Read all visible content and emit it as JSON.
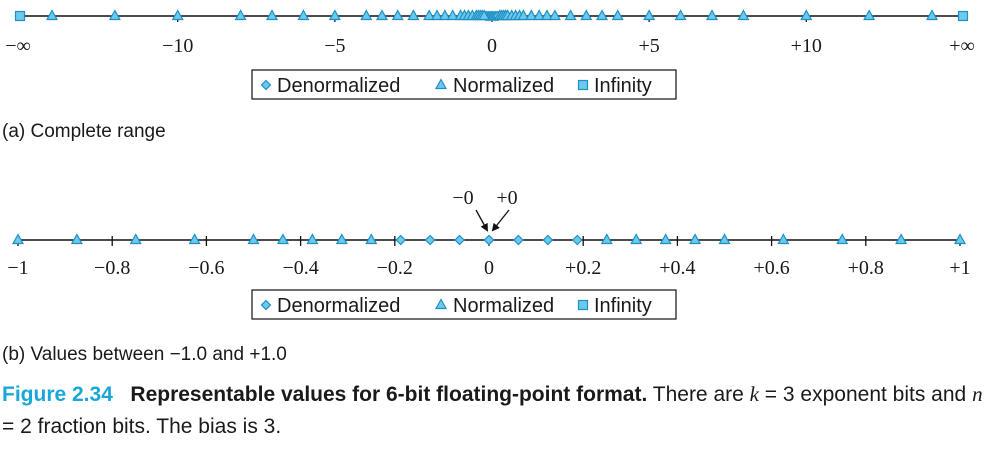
{
  "colors": {
    "marker_fill": "#6cc9ee",
    "marker_stroke": "#1f8fc2",
    "axis": "#111111",
    "accent": "#1aa6d9"
  },
  "chart_data": [
    {
      "type": "scatter",
      "panel_label": "(a) Complete range",
      "xlim": [
        -14,
        14
      ],
      "tick_values": [
        -10,
        -5,
        0,
        5,
        10
      ],
      "tick_labels": [
        "−10",
        "−5",
        "0",
        "+5",
        "+10"
      ],
      "end_labels": [
        "−∞",
        "+∞"
      ],
      "series": [
        {
          "name": "Denormalized",
          "marker": "diamond",
          "x": [
            -0.1875,
            -0.125,
            -0.0625,
            0,
            0,
            0.0625,
            0.125,
            0.1875
          ]
        },
        {
          "name": "Normalized",
          "marker": "triangle",
          "x": [
            -14,
            -12,
            -10,
            -8,
            -7,
            -6,
            -5,
            -4,
            -3.5,
            -3,
            -2.5,
            -2,
            -1.75,
            -1.5,
            -1.25,
            -1,
            -0.875,
            -0.75,
            -0.625,
            -0.5,
            -0.4375,
            -0.375,
            -0.3125,
            -0.25,
            0.25,
            0.3125,
            0.375,
            0.4375,
            0.5,
            0.625,
            0.75,
            0.875,
            1,
            1.25,
            1.5,
            1.75,
            2,
            2.5,
            3,
            3.5,
            4,
            5,
            6,
            7,
            8,
            10,
            12,
            14
          ]
        },
        {
          "name": "Infinity",
          "marker": "square",
          "x": [
            "-inf",
            "+inf"
          ]
        }
      ],
      "legend": [
        "Denormalized",
        "Normalized",
        "Infinity"
      ]
    },
    {
      "type": "scatter",
      "panel_label": "(b) Values between −1.0 and +1.0",
      "xlim": [
        -1,
        1
      ],
      "tick_values": [
        -1,
        -0.8,
        -0.6,
        -0.4,
        -0.2,
        0,
        0.2,
        0.4,
        0.6,
        0.8,
        1
      ],
      "tick_labels": [
        "−1",
        "−0.8",
        "−0.6",
        "−0.4",
        "−0.2",
        "0",
        "+0.2",
        "+0.4",
        "+0.6",
        "+0.8",
        "+1"
      ],
      "annotations": [
        "−0",
        "+0"
      ],
      "series": [
        {
          "name": "Denormalized",
          "marker": "diamond",
          "x": [
            -0.1875,
            -0.125,
            -0.0625,
            0,
            0,
            0.0625,
            0.125,
            0.1875
          ]
        },
        {
          "name": "Normalized",
          "marker": "triangle",
          "x": [
            -1,
            -0.875,
            -0.75,
            -0.625,
            -0.5,
            -0.4375,
            -0.375,
            -0.3125,
            -0.25,
            0.25,
            0.3125,
            0.375,
            0.4375,
            0.5,
            0.625,
            0.75,
            0.875,
            1
          ]
        }
      ],
      "legend": [
        "Denormalized",
        "Normalized",
        "Infinity"
      ]
    }
  ],
  "caption": {
    "figure_number": "Figure 2.34",
    "title": "Representable values for 6-bit floating-point format.",
    "text_1": " There are ",
    "k_var": "k",
    "eq_1": " = 3",
    "text_2": " exponent bits and ",
    "n_var": "n",
    "eq_2": " = 2",
    "text_3": " fraction bits. The bias is 3."
  }
}
